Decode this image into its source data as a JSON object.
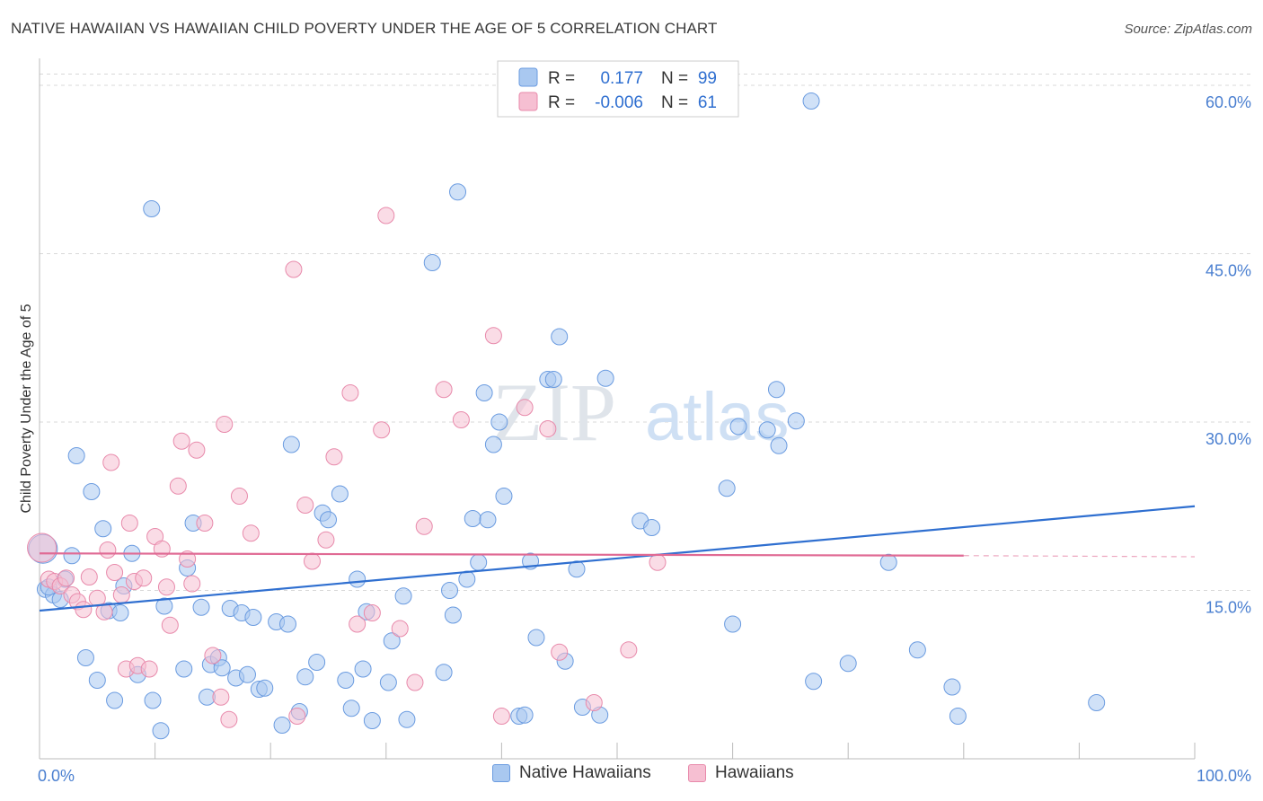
{
  "title": "NATIVE HAWAIIAN VS HAWAIIAN CHILD POVERTY UNDER THE AGE OF 5 CORRELATION CHART",
  "source": "Source: ZipAtlas.com",
  "watermark": {
    "zip": "ZIP",
    "atlas": "atlas"
  },
  "colors": {
    "blue_fill": "#a9c8f0",
    "blue_stroke": "#6a9be0",
    "blue_line": "#2f6fd0",
    "pink_fill": "#f6bfd2",
    "pink_stroke": "#e88aab",
    "pink_line": "#e06a94",
    "grid": "#d8d8d8",
    "tick_label": "#4a7fd0"
  },
  "legend": {
    "rows": [
      {
        "r_label": "R =",
        "r_value": "0.177",
        "n_label": "N =",
        "n_value": "99"
      },
      {
        "r_label": "R =",
        "r_value": "-0.006",
        "n_label": "N =",
        "n_value": "61"
      }
    ]
  },
  "bottom_legend": [
    "Native Hawaiians",
    "Hawaiians"
  ],
  "chart_data": {
    "type": "scatter",
    "xlabel": "",
    "ylabel": "Child Poverty Under the Age of 5",
    "xlim": [
      0,
      100
    ],
    "ylim": [
      0,
      62
    ],
    "x_ticks": [
      0,
      10,
      20,
      30,
      40,
      50,
      60,
      70,
      80,
      90,
      100
    ],
    "x_tick_labels": [
      {
        "value": 0,
        "label": "0.0%"
      },
      {
        "value": 100,
        "label": "100.0%"
      }
    ],
    "y_ticks": [
      {
        "value": 15,
        "label": "15.0%"
      },
      {
        "value": 30,
        "label": "30.0%"
      },
      {
        "value": 45,
        "label": "45.0%"
      },
      {
        "value": 60,
        "label": "60.0%"
      }
    ],
    "grid": "horizontal dashed",
    "series": [
      {
        "name": "Native Hawaiians",
        "trend": {
          "x": [
            0,
            100
          ],
          "y": [
            13.2,
            22.5
          ]
        },
        "points": [
          [
            0.3,
            18.7
          ],
          [
            0.5,
            15.1
          ],
          [
            1.2,
            14.6
          ],
          [
            1.8,
            14.2
          ],
          [
            2.2,
            16.0
          ],
          [
            2.8,
            18.1
          ],
          [
            3.2,
            27.0
          ],
          [
            4.0,
            9.0
          ],
          [
            4.5,
            23.8
          ],
          [
            5.0,
            7.0
          ],
          [
            5.5,
            20.5
          ],
          [
            6.0,
            13.2
          ],
          [
            6.5,
            5.2
          ],
          [
            7.0,
            13.0
          ],
          [
            7.3,
            15.4
          ],
          [
            8.0,
            18.3
          ],
          [
            8.5,
            7.5
          ],
          [
            9.7,
            49.0
          ],
          [
            9.8,
            5.2
          ],
          [
            10.5,
            2.5
          ],
          [
            10.8,
            13.6
          ],
          [
            12.5,
            8.0
          ],
          [
            12.8,
            17.0
          ],
          [
            13.3,
            21.0
          ],
          [
            14.0,
            13.5
          ],
          [
            14.5,
            5.5
          ],
          [
            14.8,
            8.4
          ],
          [
            15.5,
            9.0
          ],
          [
            15.8,
            8.1
          ],
          [
            16.5,
            13.4
          ],
          [
            17.0,
            7.2
          ],
          [
            17.5,
            13.0
          ],
          [
            18.0,
            7.5
          ],
          [
            18.5,
            12.6
          ],
          [
            19.0,
            6.2
          ],
          [
            19.5,
            6.3
          ],
          [
            20.5,
            12.2
          ],
          [
            21.0,
            3.0
          ],
          [
            21.5,
            12.0
          ],
          [
            21.8,
            28.0
          ],
          [
            22.5,
            4.2
          ],
          [
            23.0,
            7.3
          ],
          [
            24.0,
            8.6
          ],
          [
            24.5,
            21.9
          ],
          [
            25.0,
            21.3
          ],
          [
            26.0,
            23.6
          ],
          [
            26.5,
            7.0
          ],
          [
            27.0,
            4.5
          ],
          [
            27.5,
            16.0
          ],
          [
            28.0,
            8.0
          ],
          [
            28.3,
            13.1
          ],
          [
            28.8,
            3.4
          ],
          [
            30.2,
            6.8
          ],
          [
            30.5,
            10.5
          ],
          [
            31.5,
            14.5
          ],
          [
            31.8,
            3.5
          ],
          [
            34.0,
            44.2
          ],
          [
            35.0,
            7.7
          ],
          [
            35.5,
            15.0
          ],
          [
            35.8,
            12.8
          ],
          [
            36.2,
            50.5
          ],
          [
            37.0,
            16.0
          ],
          [
            37.5,
            21.4
          ],
          [
            38.0,
            17.5
          ],
          [
            38.5,
            32.6
          ],
          [
            38.8,
            21.3
          ],
          [
            39.3,
            28.0
          ],
          [
            39.8,
            30.0
          ],
          [
            40.2,
            23.4
          ],
          [
            41.5,
            3.8
          ],
          [
            42.0,
            3.9
          ],
          [
            42.5,
            17.6
          ],
          [
            43.0,
            10.8
          ],
          [
            44.0,
            33.8
          ],
          [
            44.5,
            33.8
          ],
          [
            45.0,
            37.6
          ],
          [
            45.5,
            8.7
          ],
          [
            46.5,
            16.9
          ],
          [
            47.0,
            4.6
          ],
          [
            48.5,
            3.9
          ],
          [
            49.0,
            33.9
          ],
          [
            52.0,
            21.2
          ],
          [
            53.0,
            20.6
          ],
          [
            59.5,
            24.1
          ],
          [
            60.0,
            12.0
          ],
          [
            60.5,
            29.6
          ],
          [
            63.0,
            29.3
          ],
          [
            63.8,
            32.9
          ],
          [
            64.0,
            27.9
          ],
          [
            65.5,
            30.1
          ],
          [
            66.8,
            58.6
          ],
          [
            67.0,
            6.9
          ],
          [
            70.0,
            8.5
          ],
          [
            73.5,
            17.5
          ],
          [
            76.0,
            9.7
          ],
          [
            79.0,
            6.4
          ],
          [
            79.5,
            3.8
          ],
          [
            91.5,
            5.0
          ],
          [
            0.8,
            15.3
          ]
        ]
      },
      {
        "name": "Hawaiians",
        "trend": {
          "x": [
            0,
            80
          ],
          "y": [
            18.3,
            18.1
          ]
        },
        "trend_dashed": {
          "x": [
            80,
            100
          ],
          "y": [
            18.1,
            18.0
          ]
        },
        "points": [
          [
            0.2,
            18.8
          ],
          [
            0.8,
            16.0
          ],
          [
            1.3,
            15.8
          ],
          [
            1.8,
            15.4
          ],
          [
            2.3,
            16.1
          ],
          [
            2.8,
            14.6
          ],
          [
            3.3,
            14.0
          ],
          [
            3.8,
            13.3
          ],
          [
            4.3,
            16.2
          ],
          [
            5.0,
            14.3
          ],
          [
            5.6,
            13.1
          ],
          [
            5.9,
            18.6
          ],
          [
            6.2,
            26.4
          ],
          [
            6.5,
            16.6
          ],
          [
            7.1,
            14.6
          ],
          [
            7.5,
            8.0
          ],
          [
            7.8,
            21.0
          ],
          [
            8.2,
            15.8
          ],
          [
            8.5,
            8.3
          ],
          [
            9.0,
            16.1
          ],
          [
            9.5,
            8.0
          ],
          [
            10.0,
            19.8
          ],
          [
            10.6,
            18.7
          ],
          [
            11.0,
            15.3
          ],
          [
            11.3,
            11.9
          ],
          [
            12.0,
            24.3
          ],
          [
            12.3,
            28.3
          ],
          [
            12.8,
            17.8
          ],
          [
            13.2,
            15.6
          ],
          [
            13.6,
            27.5
          ],
          [
            14.3,
            21.0
          ],
          [
            15.0,
            9.2
          ],
          [
            15.7,
            5.5
          ],
          [
            16.0,
            29.8
          ],
          [
            16.4,
            3.5
          ],
          [
            17.3,
            23.4
          ],
          [
            18.3,
            20.1
          ],
          [
            22.0,
            43.6
          ],
          [
            22.3,
            3.8
          ],
          [
            23.0,
            22.6
          ],
          [
            23.6,
            17.6
          ],
          [
            24.8,
            19.5
          ],
          [
            25.5,
            26.9
          ],
          [
            26.9,
            32.6
          ],
          [
            27.5,
            12.0
          ],
          [
            28.8,
            13.0
          ],
          [
            29.6,
            29.3
          ],
          [
            30.0,
            48.4
          ],
          [
            31.2,
            11.6
          ],
          [
            32.5,
            6.8
          ],
          [
            33.3,
            20.7
          ],
          [
            35.0,
            32.9
          ],
          [
            36.5,
            30.2
          ],
          [
            39.3,
            37.7
          ],
          [
            40.0,
            3.8
          ],
          [
            42.0,
            31.3
          ],
          [
            44.0,
            29.4
          ],
          [
            45.0,
            9.5
          ],
          [
            48.0,
            5.0
          ],
          [
            51.0,
            9.7
          ],
          [
            53.5,
            17.5
          ]
        ]
      }
    ]
  }
}
